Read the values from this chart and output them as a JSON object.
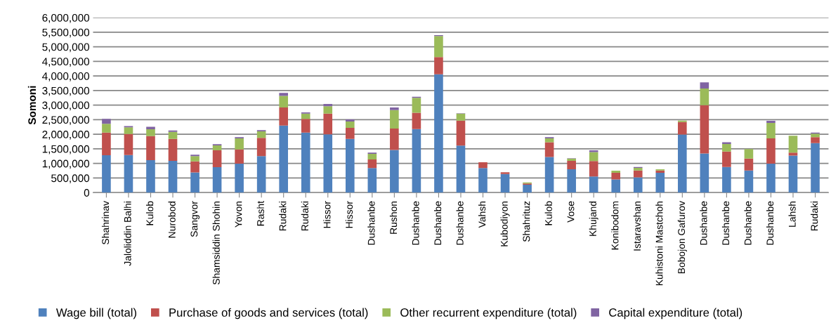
{
  "chart_data": {
    "type": "bar",
    "stacked": true,
    "ylabel": "Somoni",
    "categories": [
      "Shahrinav",
      "Jaloliddin Balhi",
      "Kulob",
      "Nurobod",
      "Sangvor",
      "Shamsiddin Shohin",
      "Yovon",
      "Rasht",
      "Rudaki",
      "Rudaki",
      "Hissor",
      "Hissor",
      "Dushanbe",
      "Rushon",
      "Dushanbe",
      "Dushanbe",
      "Dushanbe",
      "Vahsh",
      "Kubodiyon",
      "Shahrituz",
      "Kulob",
      "Vose",
      "Khujand",
      "Konibodom",
      "Istaravshan",
      "Kuhistoni Mastchoh",
      "Bobojon Gafurov",
      "Dushanbe",
      "Dushanbe",
      "Dushanbe",
      "Dushanbe",
      "Lahsh",
      "Rudaki"
    ],
    "series": [
      {
        "name": "Wage bill (total)",
        "color": "#4f81bd",
        "values": [
          1280000,
          1290000,
          1110000,
          1090000,
          690000,
          870000,
          990000,
          1250000,
          2300000,
          2060000,
          2000000,
          1840000,
          840000,
          1460000,
          2180000,
          4060000,
          1610000,
          840000,
          640000,
          270000,
          1220000,
          800000,
          550000,
          450000,
          520000,
          680000,
          1990000,
          1340000,
          880000,
          760000,
          990000,
          1270000,
          1700000
        ]
      },
      {
        "name": "Purchase of goods and services (total)",
        "color": "#c0504d",
        "values": [
          780000,
          720000,
          830000,
          750000,
          380000,
          580000,
          490000,
          630000,
          620000,
          470000,
          710000,
          380000,
          300000,
          740000,
          560000,
          590000,
          860000,
          200000,
          60000,
          40000,
          510000,
          290000,
          530000,
          230000,
          240000,
          80000,
          430000,
          1660000,
          530000,
          410000,
          870000,
          100000,
          200000
        ]
      },
      {
        "name": "Other recurrent expenditure (total)",
        "color": "#9bbb59",
        "values": [
          300000,
          230000,
          230000,
          240000,
          180000,
          170000,
          380000,
          220000,
          400000,
          180000,
          250000,
          220000,
          190000,
          630000,
          510000,
          720000,
          240000,
          0,
          null,
          40000,
          130000,
          80000,
          310000,
          70000,
          90000,
          40000,
          50000,
          570000,
          260000,
          320000,
          530000,
          580000,
          120000
        ]
      },
      {
        "name": "Capital expenditure (total)",
        "color": "#8064a2",
        "values": [
          170000,
          40000,
          90000,
          50000,
          50000,
          40000,
          40000,
          40000,
          100000,
          40000,
          80000,
          70000,
          40000,
          90000,
          40000,
          30000,
          10000,
          0,
          0,
          0,
          40000,
          10000,
          60000,
          null,
          30000,
          0,
          0,
          210000,
          60000,
          null,
          70000,
          0,
          40000
        ]
      }
    ],
    "ylim": [
      0,
      6000000
    ],
    "yticks": [
      0,
      {
        "value": 500000,
        "label": "500,000"
      },
      {
        "value": 1000000,
        "label": "1,000,000"
      },
      {
        "value": 1500000,
        "label": "1,500,000"
      },
      {
        "value": 2000000,
        "label": "2,000,000"
      },
      {
        "value": 2500000,
        "label": "2,500,000"
      },
      {
        "value": 3000000,
        "label": "3,000,000"
      },
      {
        "value": 3500000,
        "label": "3,500,000"
      },
      {
        "value": 4000000,
        "label": "4,000,000"
      },
      {
        "value": 4500000,
        "label": "4,500,000"
      },
      {
        "value": 5000000,
        "label": "5,000,000"
      },
      {
        "value": 5500000,
        "label": "5,500,000"
      },
      {
        "value": 6000000,
        "label": "6,000,000"
      }
    ],
    "grid": "y",
    "legend": "bottom"
  }
}
